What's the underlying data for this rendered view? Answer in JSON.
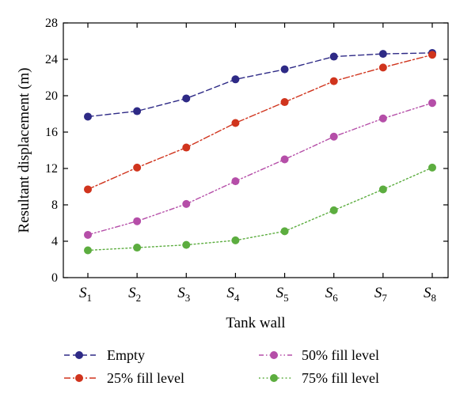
{
  "chart_data": {
    "type": "line",
    "title": "",
    "xlabel": "Tank wall",
    "ylabel": "Resultant displacement (m)",
    "ylim": [
      0,
      28
    ],
    "yticks": [
      0,
      4,
      8,
      12,
      16,
      20,
      24,
      28
    ],
    "grid": false,
    "legend_position": "bottom",
    "categories": [
      {
        "main": "S",
        "sub": "1"
      },
      {
        "main": "S",
        "sub": "2"
      },
      {
        "main": "S",
        "sub": "3"
      },
      {
        "main": "S",
        "sub": "4"
      },
      {
        "main": "S",
        "sub": "5"
      },
      {
        "main": "S",
        "sub": "6"
      },
      {
        "main": "S",
        "sub": "7"
      },
      {
        "main": "S",
        "sub": "8"
      }
    ],
    "series": [
      {
        "name": "Empty",
        "color": "#2e2a86",
        "dash": "dashed",
        "values": [
          17.7,
          18.3,
          19.7,
          21.8,
          22.9,
          24.3,
          24.6,
          24.7
        ]
      },
      {
        "name": "25% fill level",
        "color": "#d0341d",
        "dash": "dashdot",
        "values": [
          9.7,
          12.1,
          14.3,
          17.0,
          19.3,
          21.6,
          23.1,
          24.5
        ]
      },
      {
        "name": "50% fill level",
        "color": "#b54ea8",
        "dash": "dashdotdot",
        "values": [
          4.7,
          6.2,
          8.1,
          10.6,
          13.0,
          15.5,
          17.5,
          19.2
        ]
      },
      {
        "name": "75% fill level",
        "color": "#5cad3f",
        "dash": "dotted",
        "values": [
          3.0,
          3.3,
          3.6,
          4.1,
          5.1,
          7.4,
          9.7,
          12.1
        ]
      }
    ]
  }
}
